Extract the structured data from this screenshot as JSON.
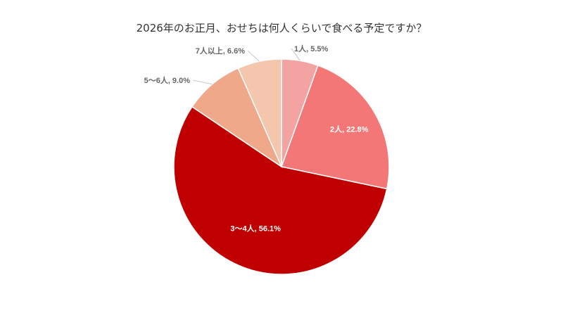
{
  "chart_data": {
    "type": "pie",
    "title": "2026年のお正月、おせちは何人くらいで食べる予定ですか？",
    "slices": [
      {
        "label": "1人, 5.5%",
        "category": "1人",
        "value": 5.5,
        "color": "#f4a3a3",
        "label_color": "#666666"
      },
      {
        "label": "2人, 22.8%",
        "category": "2人",
        "value": 22.8,
        "color": "#f47777",
        "label_color": "#ffffff"
      },
      {
        "label": "3〜4人, 56.1%",
        "category": "3〜4人",
        "value": 56.1,
        "color": "#c00000",
        "label_color": "#ffffff"
      },
      {
        "label": "5〜6人, 9.0%",
        "category": "5〜6人",
        "value": 9.0,
        "color": "#f0a88a",
        "label_color": "#666666"
      },
      {
        "label": "7人以上, 6.6%",
        "category": "7人以上",
        "value": 6.6,
        "color": "#f4c6ad",
        "label_color": "#666666"
      }
    ],
    "start_angle": "12 o'clock",
    "direction": "clockwise",
    "legend": "none"
  }
}
